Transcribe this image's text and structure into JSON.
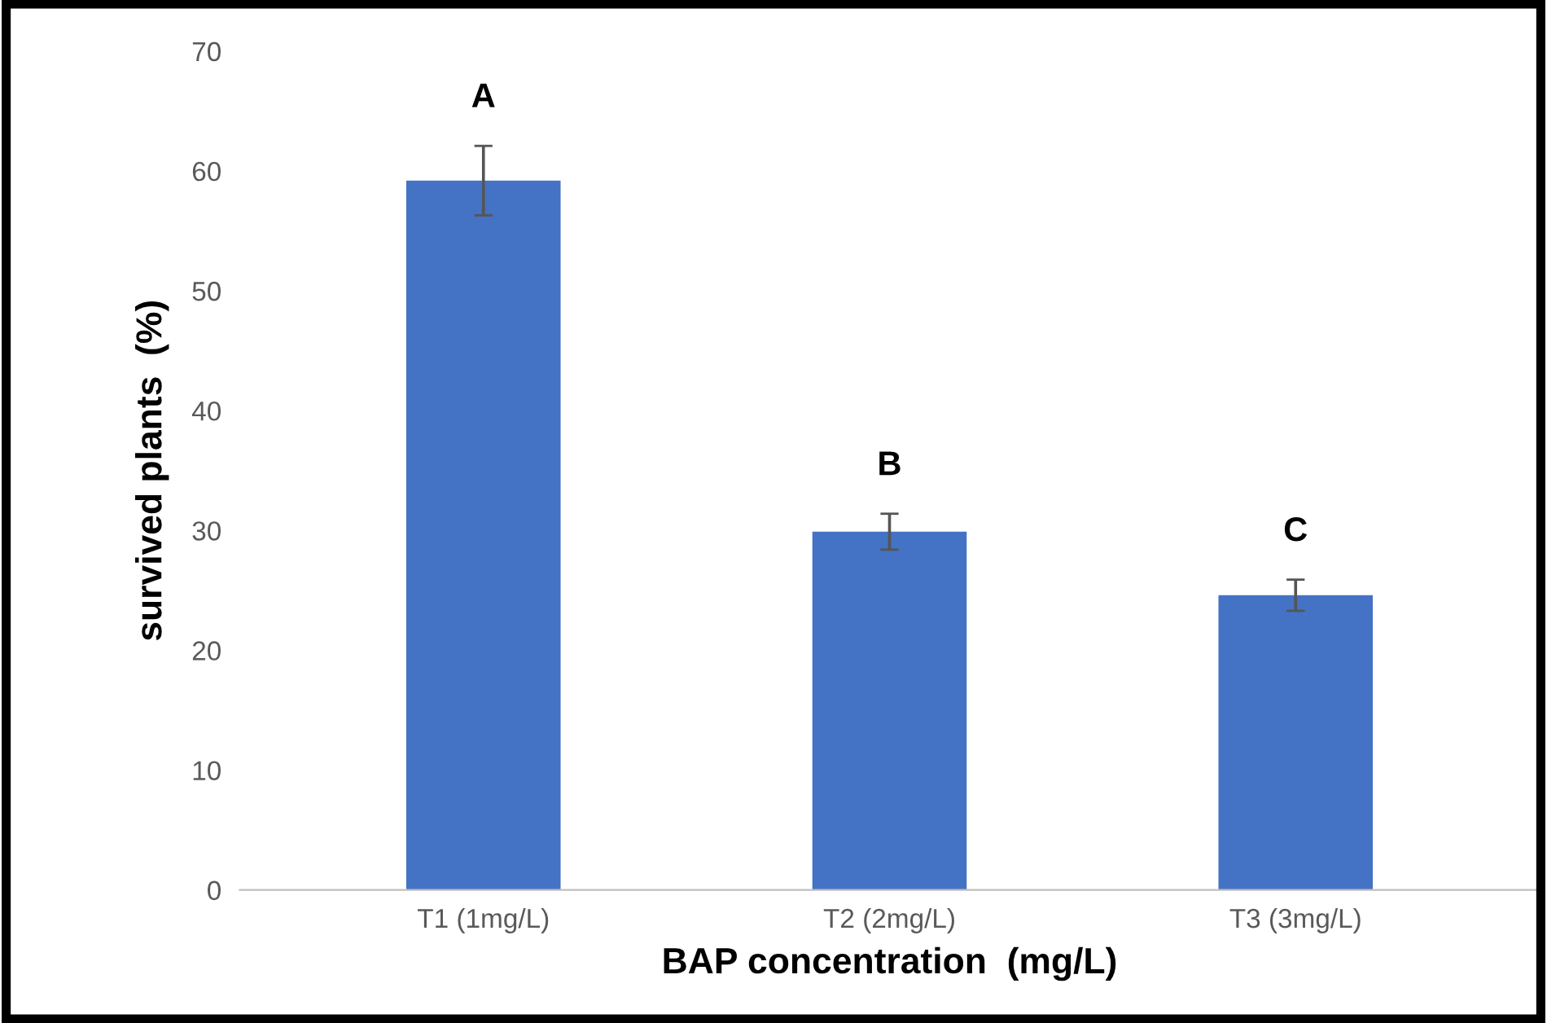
{
  "chart_data": {
    "type": "bar",
    "categories": [
      "T1 (1mg/L)",
      "T2 (2mg/L)",
      "T3 (3mg/L)"
    ],
    "values": [
      59.2,
      29.9,
      24.6
    ],
    "errors": [
      2.9,
      1.5,
      1.3
    ],
    "color": "#4472c4",
    "xlabel": "BAP concentration  (mg/L)",
    "ylabel": "survived plants  (%)",
    "ylim": [
      0,
      70
    ],
    "yticks": [
      0,
      10,
      20,
      30,
      40,
      50,
      60,
      70
    ],
    "grid": false,
    "legend": false,
    "annotations": [
      "A",
      "B",
      "C"
    ]
  }
}
